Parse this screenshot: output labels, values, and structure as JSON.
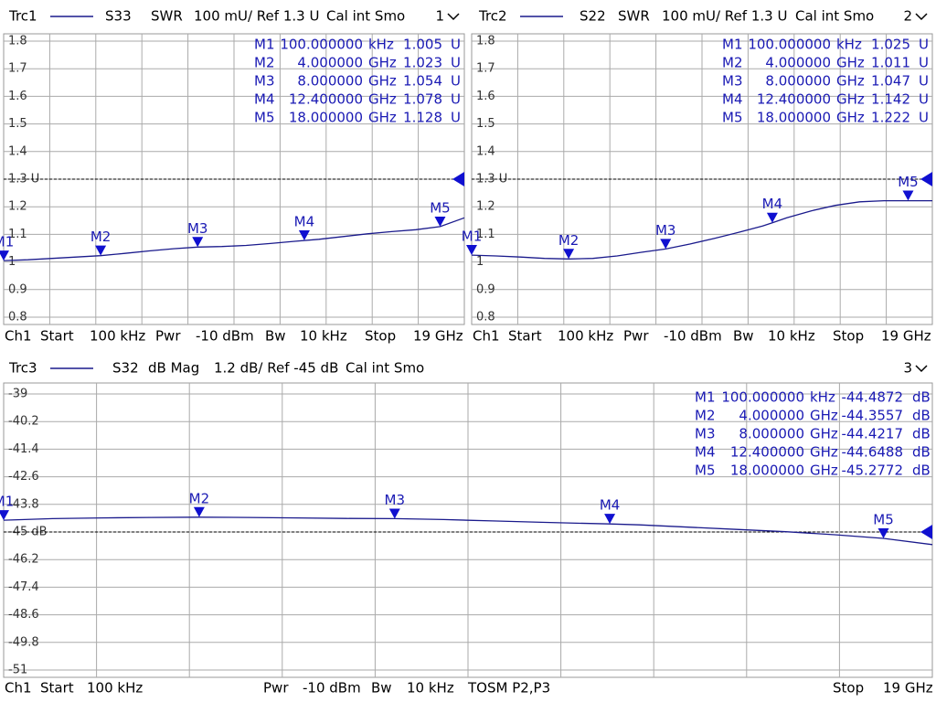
{
  "chart_data": [
    {
      "type": "line",
      "trace": "Trc1",
      "parameter": "S33",
      "format": "SWR",
      "scale": "100 mU/ Ref 1.3 U",
      "cal": "Cal int Smo",
      "channel": "1",
      "xlim": [
        0.0001,
        19
      ],
      "ylim": [
        0.8,
        1.8
      ],
      "x_divisions": 10,
      "yticks": [
        0.8,
        0.9,
        1,
        1.1,
        1.2,
        {
          "value": 1.3,
          "label": "1.3 U"
        },
        1.4,
        1.5,
        1.6,
        1.7,
        1.8
      ],
      "ref": 1.3,
      "color": "#1a1a8c",
      "x": [
        0.0001,
        1,
        2,
        3,
        4,
        5,
        6,
        7,
        8,
        9,
        10,
        11,
        12,
        13,
        14,
        15,
        16,
        17,
        18,
        19
      ],
      "values": [
        1.005,
        1.008,
        1.013,
        1.018,
        1.023,
        1.031,
        1.04,
        1.048,
        1.054,
        1.056,
        1.06,
        1.067,
        1.075,
        1.082,
        1.092,
        1.102,
        1.11,
        1.117,
        1.128,
        1.16
      ],
      "markers": [
        {
          "name": "M1",
          "stimulus": "100.000000",
          "stimulus_unit": "kHz",
          "x": 0.0001,
          "value": 1.005,
          "value_unit": "U"
        },
        {
          "name": "M2",
          "stimulus": "4.000000",
          "stimulus_unit": "GHz",
          "x": 4,
          "value": 1.023,
          "value_unit": "U"
        },
        {
          "name": "M3",
          "stimulus": "8.000000",
          "stimulus_unit": "GHz",
          "x": 8,
          "value": 1.054,
          "value_unit": "U"
        },
        {
          "name": "M4",
          "stimulus": "12.400000",
          "stimulus_unit": "GHz",
          "x": 12.4,
          "value": 1.078,
          "value_unit": "U"
        },
        {
          "name": "M5",
          "stimulus": "18.000000",
          "stimulus_unit": "GHz",
          "x": 18,
          "value": 1.128,
          "value_unit": "U"
        }
      ],
      "footer": [
        "Ch1",
        "Start",
        "100 kHz",
        "Pwr",
        "-10 dBm",
        "Bw",
        "10 kHz",
        "Stop",
        "19 GHz"
      ]
    },
    {
      "type": "line",
      "trace": "Trc2",
      "parameter": "S22",
      "format": "SWR",
      "scale": "100 mU/ Ref 1.3 U",
      "cal": "Cal int Smo",
      "channel": "2",
      "xlim": [
        0.0001,
        19
      ],
      "ylim": [
        0.8,
        1.8
      ],
      "x_divisions": 10,
      "yticks": [
        0.8,
        0.9,
        1,
        1.1,
        1.2,
        {
          "value": 1.3,
          "label": "1.3 U"
        },
        1.4,
        1.5,
        1.6,
        1.7,
        1.8
      ],
      "ref": 1.3,
      "color": "#1a1a8c",
      "x": [
        0.0001,
        1,
        2,
        3,
        4,
        5,
        6,
        7,
        8,
        9,
        10,
        11,
        12,
        12.4,
        13,
        14,
        15,
        16,
        17,
        18,
        19
      ],
      "values": [
        1.025,
        1.022,
        1.018,
        1.013,
        1.011,
        1.013,
        1.022,
        1.035,
        1.047,
        1.065,
        1.085,
        1.107,
        1.13,
        1.142,
        1.16,
        1.185,
        1.205,
        1.218,
        1.222,
        1.222,
        1.222
      ],
      "markers": [
        {
          "name": "M1",
          "stimulus": "100.000000",
          "stimulus_unit": "kHz",
          "x": 0.0001,
          "value": 1.025,
          "value_unit": "U"
        },
        {
          "name": "M2",
          "stimulus": "4.000000",
          "stimulus_unit": "GHz",
          "x": 4,
          "value": 1.011,
          "value_unit": "U"
        },
        {
          "name": "M3",
          "stimulus": "8.000000",
          "stimulus_unit": "GHz",
          "x": 8,
          "value": 1.047,
          "value_unit": "U"
        },
        {
          "name": "M4",
          "stimulus": "12.400000",
          "stimulus_unit": "GHz",
          "x": 12.4,
          "value": 1.142,
          "value_unit": "U"
        },
        {
          "name": "M5",
          "stimulus": "18.000000",
          "stimulus_unit": "GHz",
          "x": 18,
          "value": 1.222,
          "value_unit": "U"
        }
      ],
      "footer": [
        "Ch1",
        "Start",
        "100 kHz",
        "Pwr",
        "-10 dBm",
        "Bw",
        "10 kHz",
        "Stop",
        "19 GHz"
      ]
    },
    {
      "type": "line",
      "trace": "Trc3",
      "parameter": "S32",
      "format": "dB Mag",
      "scale": "1.2 dB/ Ref -45 dB",
      "cal": "Cal int Smo",
      "channel": "3",
      "xlim": [
        0.0001,
        19
      ],
      "ylim": [
        -51,
        -39
      ],
      "x_divisions": 10,
      "yticks": [
        -51,
        -49.8,
        -48.6,
        -47.4,
        -46.2,
        {
          "value": -45,
          "label": "-45 dB"
        },
        -43.8,
        -42.6,
        -41.4,
        -40.2,
        -39
      ],
      "ref": -45,
      "color": "#1a1a8c",
      "x": [
        0.0001,
        1,
        2,
        3,
        4,
        5,
        6,
        7,
        8,
        9,
        10,
        11,
        12,
        12.4,
        13,
        14,
        15,
        16,
        17,
        18,
        19
      ],
      "values": [
        -44.4872,
        -44.42,
        -44.39,
        -44.37,
        -44.3557,
        -44.37,
        -44.39,
        -44.41,
        -44.4217,
        -44.46,
        -44.52,
        -44.58,
        -44.63,
        -44.6488,
        -44.69,
        -44.79,
        -44.89,
        -44.99,
        -45.12,
        -45.2772,
        -45.55
      ],
      "markers": [
        {
          "name": "M1",
          "stimulus": "100.000000",
          "stimulus_unit": "kHz",
          "x": 0.0001,
          "value": -44.4872,
          "value_unit": "dB"
        },
        {
          "name": "M2",
          "stimulus": "4.000000",
          "stimulus_unit": "GHz",
          "x": 4,
          "value": -44.3557,
          "value_unit": "dB"
        },
        {
          "name": "M3",
          "stimulus": "8.000000",
          "stimulus_unit": "GHz",
          "x": 8,
          "value": -44.4217,
          "value_unit": "dB"
        },
        {
          "name": "M4",
          "stimulus": "12.400000",
          "stimulus_unit": "GHz",
          "x": 12.4,
          "value": -44.6488,
          "value_unit": "dB"
        },
        {
          "name": "M5",
          "stimulus": "18.000000",
          "stimulus_unit": "GHz",
          "x": 18,
          "value": -45.2772,
          "value_unit": "dB"
        }
      ],
      "footer": [
        "Ch1",
        "Start",
        "100 kHz",
        "Pwr",
        "-10 dBm",
        "Bw",
        "10 kHz",
        "TOSM P2,P3",
        "Stop",
        "19 GHz"
      ]
    }
  ]
}
